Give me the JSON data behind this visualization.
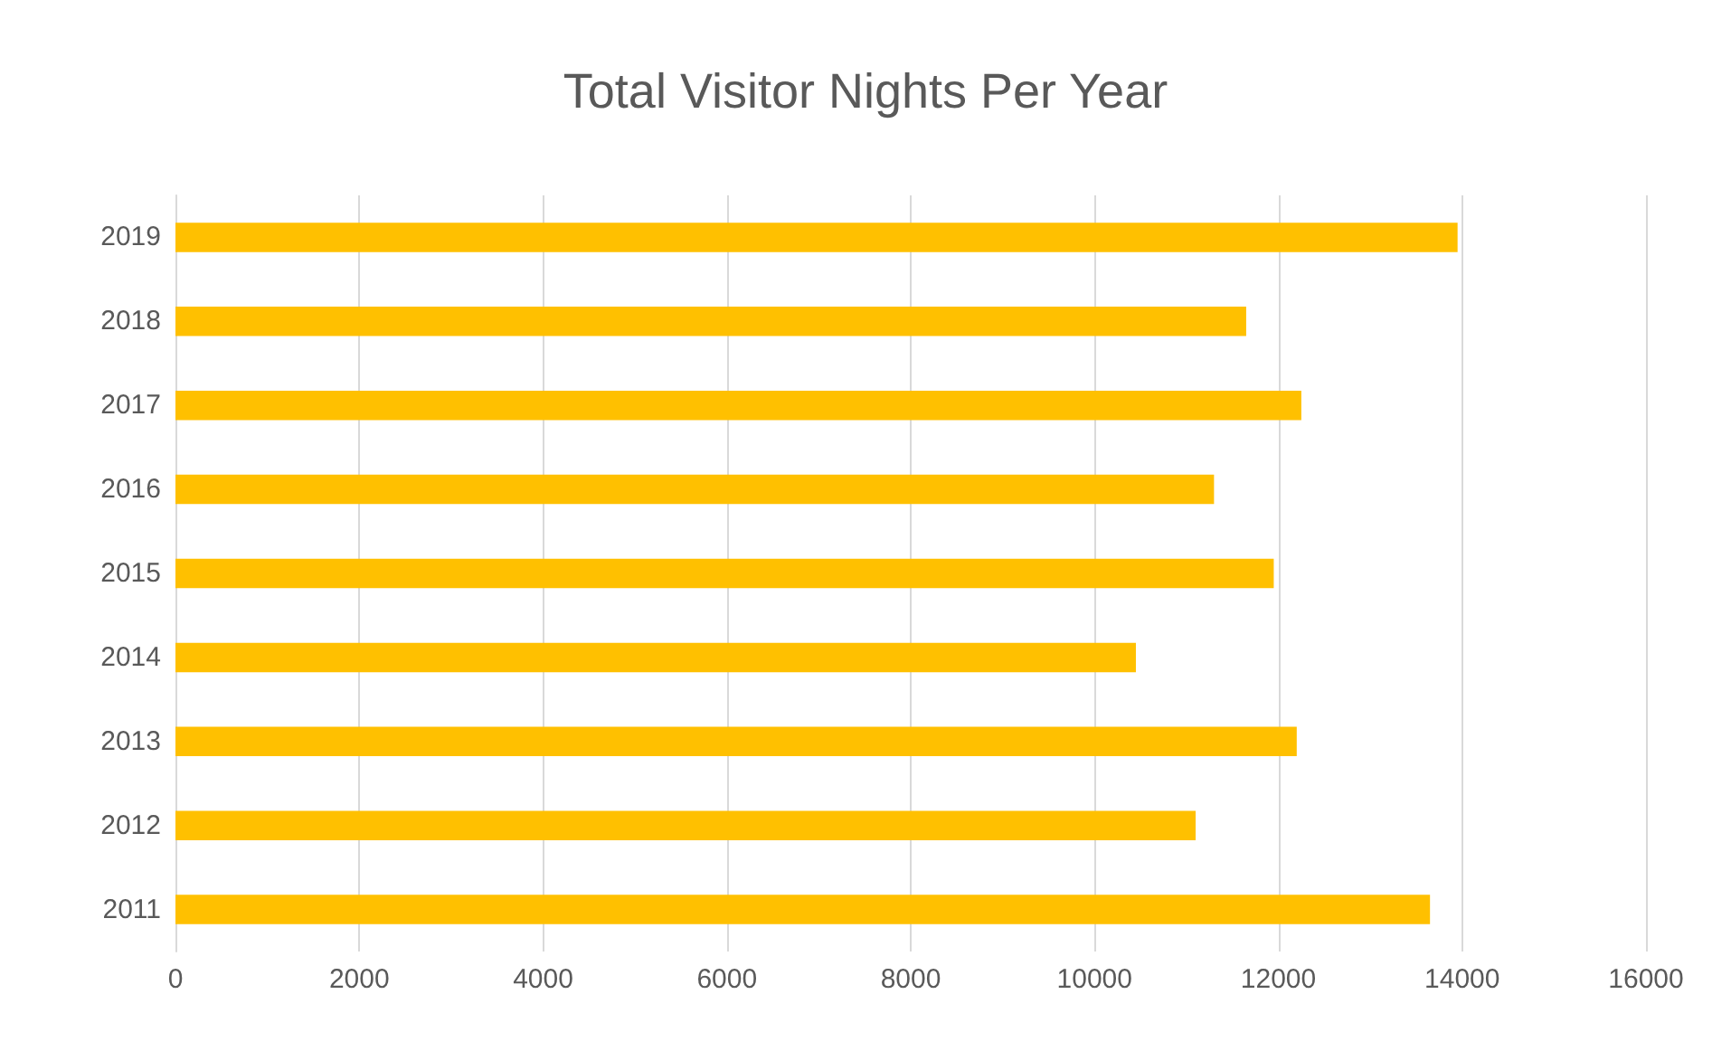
{
  "chart_data": {
    "type": "bar",
    "orientation": "horizontal",
    "title": "Total Visitor Nights Per Year",
    "categories": [
      "2019",
      "2018",
      "2017",
      "2016",
      "2015",
      "2014",
      "2013",
      "2012",
      "2011"
    ],
    "values": [
      13950,
      11650,
      12250,
      11300,
      11950,
      10450,
      12200,
      11100,
      13650
    ],
    "color": "#ffc000",
    "xlim": [
      0,
      16000
    ],
    "xticks": [
      0,
      2000,
      4000,
      6000,
      8000,
      10000,
      12000,
      14000,
      16000
    ],
    "grid": "x"
  }
}
